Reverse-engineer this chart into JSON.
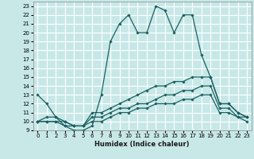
{
  "xlabel": "Humidex (Indice chaleur)",
  "xlim": [
    -0.5,
    23.5
  ],
  "ylim": [
    9,
    23.5
  ],
  "yticks": [
    9,
    10,
    11,
    12,
    13,
    14,
    15,
    16,
    17,
    18,
    19,
    20,
    21,
    22,
    23
  ],
  "xticks": [
    0,
    1,
    2,
    3,
    4,
    5,
    6,
    7,
    8,
    9,
    10,
    11,
    12,
    13,
    14,
    15,
    16,
    17,
    18,
    19,
    20,
    21,
    22,
    23
  ],
  "bg_color": "#c8e8e8",
  "grid_color": "#ffffff",
  "line_color": "#1a6060",
  "lines": [
    {
      "x": [
        0,
        1,
        2,
        3,
        4,
        5,
        6,
        7,
        8,
        9,
        10,
        11,
        12,
        13,
        14,
        15,
        16,
        17,
        18,
        19,
        20,
        21,
        22,
        23
      ],
      "y": [
        13,
        12,
        10.5,
        9.5,
        9,
        9,
        9.5,
        13,
        19,
        21,
        22,
        20,
        20,
        23,
        22.5,
        20,
        22,
        22,
        17.5,
        15,
        12,
        12,
        11,
        10.5
      ]
    },
    {
      "x": [
        0,
        1,
        2,
        3,
        4,
        5,
        6,
        7,
        8,
        9,
        10,
        11,
        12,
        13,
        14,
        15,
        16,
        17,
        18,
        19,
        20,
        21,
        22,
        23
      ],
      "y": [
        10,
        10.5,
        10.5,
        10,
        9.5,
        9.5,
        11,
        11,
        11.5,
        12,
        12.5,
        13,
        13.5,
        14,
        14,
        14.5,
        14.5,
        15,
        15,
        15,
        12,
        12,
        11,
        10.5
      ]
    },
    {
      "x": [
        0,
        1,
        2,
        3,
        4,
        5,
        6,
        7,
        8,
        9,
        10,
        11,
        12,
        13,
        14,
        15,
        16,
        17,
        18,
        19,
        20,
        21,
        22,
        23
      ],
      "y": [
        10,
        10,
        10,
        10,
        9.5,
        9.5,
        10.5,
        10.5,
        11,
        11.5,
        11.5,
        12,
        12,
        12.5,
        13,
        13,
        13.5,
        13.5,
        14,
        14,
        11.5,
        11.5,
        10.5,
        10.5
      ]
    },
    {
      "x": [
        0,
        1,
        2,
        3,
        4,
        5,
        6,
        7,
        8,
        9,
        10,
        11,
        12,
        13,
        14,
        15,
        16,
        17,
        18,
        19,
        20,
        21,
        22,
        23
      ],
      "y": [
        10,
        10,
        10,
        9.5,
        9.5,
        9.5,
        10,
        10,
        10.5,
        11,
        11,
        11.5,
        11.5,
        12,
        12,
        12,
        12.5,
        12.5,
        13,
        13,
        11,
        11,
        10.5,
        10
      ]
    }
  ]
}
